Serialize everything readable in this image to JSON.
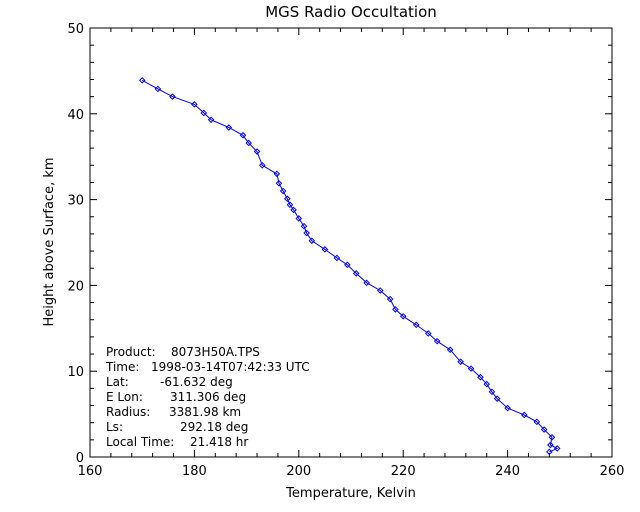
{
  "chart_data": {
    "type": "line",
    "title": "MGS Radio Occultation",
    "xlabel": "Temperature, Kelvin",
    "ylabel": "Height above Surface, km",
    "xlim": [
      160,
      260
    ],
    "ylim": [
      0,
      50
    ],
    "xticks": [
      "160",
      "180",
      "200",
      "220",
      "240",
      "260"
    ],
    "yticks": [
      "0",
      "10",
      "20",
      "30",
      "40",
      "50"
    ],
    "grid": false,
    "series_color": "#0000ff",
    "marker": "diamond",
    "series": [
      {
        "x": [
          170.0,
          173.0,
          175.8,
          180.0,
          181.8,
          183.2,
          186.6,
          189.3,
          190.4,
          192.0,
          193.0,
          195.8,
          196.2,
          197.0,
          197.8,
          198.3,
          199.0,
          200.0,
          201.0,
          201.5,
          202.5,
          205.0,
          207.3,
          209.3,
          211.0,
          213.0,
          215.6,
          217.5,
          218.5,
          220.0,
          222.5,
          224.8,
          226.5,
          229.0,
          231.0,
          233.0,
          234.8,
          236.0,
          237.0,
          238.0,
          240.0,
          243.2,
          245.6,
          247.0,
          248.5,
          248.2,
          249.5,
          248.0
        ],
        "y": [
          43.9,
          42.9,
          42.0,
          41.1,
          40.1,
          39.3,
          38.4,
          37.5,
          36.6,
          35.6,
          34.0,
          33.0,
          31.9,
          31.0,
          30.1,
          29.4,
          28.8,
          27.8,
          26.9,
          26.1,
          25.2,
          24.2,
          23.2,
          22.4,
          21.4,
          20.3,
          19.4,
          18.4,
          17.2,
          16.4,
          15.4,
          14.4,
          13.5,
          12.5,
          11.1,
          10.3,
          9.3,
          8.5,
          7.6,
          6.8,
          5.7,
          4.9,
          4.1,
          3.2,
          2.3,
          1.4,
          1.0,
          0.6
        ]
      }
    ],
    "annotations": [
      {
        "label": "Product:",
        "value": "8073H50A.TPS"
      },
      {
        "label": "Time:",
        "value": "1998-03-14T07:42:33 UTC"
      },
      {
        "label": "Lat:",
        "value": "-61.632 deg"
      },
      {
        "label": "E Lon:",
        "value": "311.306 deg"
      },
      {
        "label": "Radius:",
        "value": "3381.98 km"
      },
      {
        "label": "Ls:",
        "value": "292.18 deg"
      },
      {
        "label": "Local Time:",
        "value": "21.418 hr"
      }
    ]
  }
}
